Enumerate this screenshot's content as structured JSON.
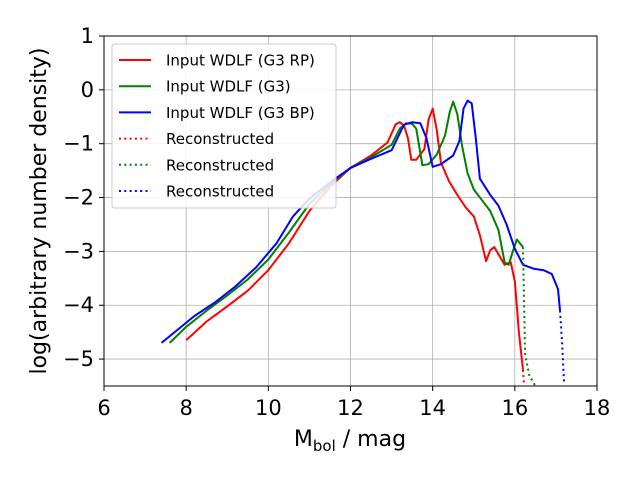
{
  "chart_data": {
    "type": "line",
    "xlabel_main": "M",
    "xlabel_sub": "bol",
    "xlabel_rest": " / mag",
    "ylabel": "log(arbitrary number density)",
    "xlim": [
      6,
      18
    ],
    "ylim": [
      -5.5,
      1
    ],
    "xticks": [
      6,
      8,
      10,
      12,
      14,
      16,
      18
    ],
    "yticks": [
      1,
      0,
      -1,
      -2,
      -3,
      -4,
      -5
    ],
    "grid": true,
    "legend_position": "upper-left",
    "series": [
      {
        "name": "Input WDLF (G3 RP)",
        "color": "#ff0000",
        "style": "solid",
        "points": [
          [
            8.0,
            -4.65
          ],
          [
            8.5,
            -4.3
          ],
          [
            9.0,
            -4.02
          ],
          [
            9.5,
            -3.73
          ],
          [
            10.0,
            -3.35
          ],
          [
            10.5,
            -2.85
          ],
          [
            11.0,
            -2.25
          ],
          [
            11.5,
            -1.8
          ],
          [
            12.0,
            -1.45
          ],
          [
            12.5,
            -1.22
          ],
          [
            12.9,
            -0.98
          ],
          [
            13.1,
            -0.64
          ],
          [
            13.2,
            -0.6
          ],
          [
            13.3,
            -0.66
          ],
          [
            13.4,
            -0.9
          ],
          [
            13.48,
            -1.3
          ],
          [
            13.6,
            -1.3
          ],
          [
            13.8,
            -1.1
          ],
          [
            13.9,
            -0.55
          ],
          [
            14.0,
            -0.35
          ],
          [
            14.1,
            -0.75
          ],
          [
            14.2,
            -1.35
          ],
          [
            14.4,
            -1.7
          ],
          [
            14.6,
            -1.95
          ],
          [
            14.8,
            -2.18
          ],
          [
            15.0,
            -2.35
          ],
          [
            15.15,
            -2.7
          ],
          [
            15.3,
            -3.18
          ],
          [
            15.4,
            -2.98
          ],
          [
            15.5,
            -2.92
          ],
          [
            15.6,
            -3.05
          ],
          [
            15.75,
            -3.25
          ],
          [
            15.9,
            -3.2
          ],
          [
            16.0,
            -3.55
          ],
          [
            16.1,
            -4.5
          ],
          [
            16.2,
            -5.2
          ]
        ]
      },
      {
        "name": "Input WDLF (G3)",
        "color": "#008000",
        "style": "solid",
        "points": [
          [
            7.6,
            -4.7
          ],
          [
            8.0,
            -4.4
          ],
          [
            8.5,
            -4.1
          ],
          [
            9.0,
            -3.82
          ],
          [
            9.5,
            -3.52
          ],
          [
            10.0,
            -3.15
          ],
          [
            10.5,
            -2.65
          ],
          [
            11.0,
            -2.12
          ],
          [
            11.5,
            -1.75
          ],
          [
            12.0,
            -1.45
          ],
          [
            12.5,
            -1.25
          ],
          [
            13.0,
            -1.02
          ],
          [
            13.2,
            -0.72
          ],
          [
            13.35,
            -0.62
          ],
          [
            13.5,
            -0.63
          ],
          [
            13.6,
            -0.72
          ],
          [
            13.75,
            -1.4
          ],
          [
            13.9,
            -1.38
          ],
          [
            14.1,
            -1.2
          ],
          [
            14.3,
            -0.85
          ],
          [
            14.42,
            -0.4
          ],
          [
            14.5,
            -0.22
          ],
          [
            14.6,
            -0.45
          ],
          [
            14.72,
            -1.05
          ],
          [
            14.85,
            -1.55
          ],
          [
            15.0,
            -1.85
          ],
          [
            15.2,
            -2.05
          ],
          [
            15.4,
            -2.25
          ],
          [
            15.6,
            -2.6
          ],
          [
            15.75,
            -3.2
          ],
          [
            15.85,
            -3.25
          ],
          [
            15.95,
            -3.0
          ],
          [
            16.05,
            -2.78
          ],
          [
            16.2,
            -2.92
          ]
        ]
      },
      {
        "name": "Input WDLF (G3 BP)",
        "color": "#0000ff",
        "style": "solid",
        "points": [
          [
            7.4,
            -4.7
          ],
          [
            7.8,
            -4.45
          ],
          [
            8.2,
            -4.2
          ],
          [
            8.7,
            -3.95
          ],
          [
            9.2,
            -3.65
          ],
          [
            9.7,
            -3.3
          ],
          [
            10.2,
            -2.85
          ],
          [
            10.6,
            -2.35
          ],
          [
            11.0,
            -2.02
          ],
          [
            11.5,
            -1.72
          ],
          [
            12.0,
            -1.45
          ],
          [
            12.5,
            -1.28
          ],
          [
            13.0,
            -1.12
          ],
          [
            13.3,
            -0.65
          ],
          [
            13.5,
            -0.6
          ],
          [
            13.7,
            -0.62
          ],
          [
            13.85,
            -0.9
          ],
          [
            14.0,
            -1.43
          ],
          [
            14.2,
            -1.38
          ],
          [
            14.5,
            -1.22
          ],
          [
            14.65,
            -0.95
          ],
          [
            14.75,
            -0.35
          ],
          [
            14.85,
            -0.2
          ],
          [
            14.95,
            -0.25
          ],
          [
            15.05,
            -0.9
          ],
          [
            15.15,
            -1.65
          ],
          [
            15.4,
            -1.95
          ],
          [
            15.6,
            -2.15
          ],
          [
            15.8,
            -2.5
          ],
          [
            16.0,
            -2.95
          ],
          [
            16.2,
            -3.25
          ],
          [
            16.45,
            -3.32
          ],
          [
            16.7,
            -3.35
          ],
          [
            16.9,
            -3.42
          ],
          [
            17.05,
            -3.7
          ],
          [
            17.1,
            -4.1
          ]
        ]
      },
      {
        "name": "Reconstructed",
        "color": "#ff0000",
        "style": "dotted",
        "points": [
          [
            16.2,
            -5.2
          ],
          [
            16.22,
            -5.45
          ]
        ]
      },
      {
        "name": "Reconstructed",
        "color": "#008000",
        "style": "dotted",
        "points": [
          [
            16.2,
            -2.92
          ],
          [
            16.25,
            -4.9
          ],
          [
            16.35,
            -5.3
          ],
          [
            16.5,
            -5.5
          ]
        ]
      },
      {
        "name": "Reconstructed",
        "color": "#0000ff",
        "style": "dotted",
        "points": [
          [
            17.1,
            -4.1
          ],
          [
            17.15,
            -4.7
          ],
          [
            17.2,
            -5.45
          ]
        ]
      }
    ]
  }
}
